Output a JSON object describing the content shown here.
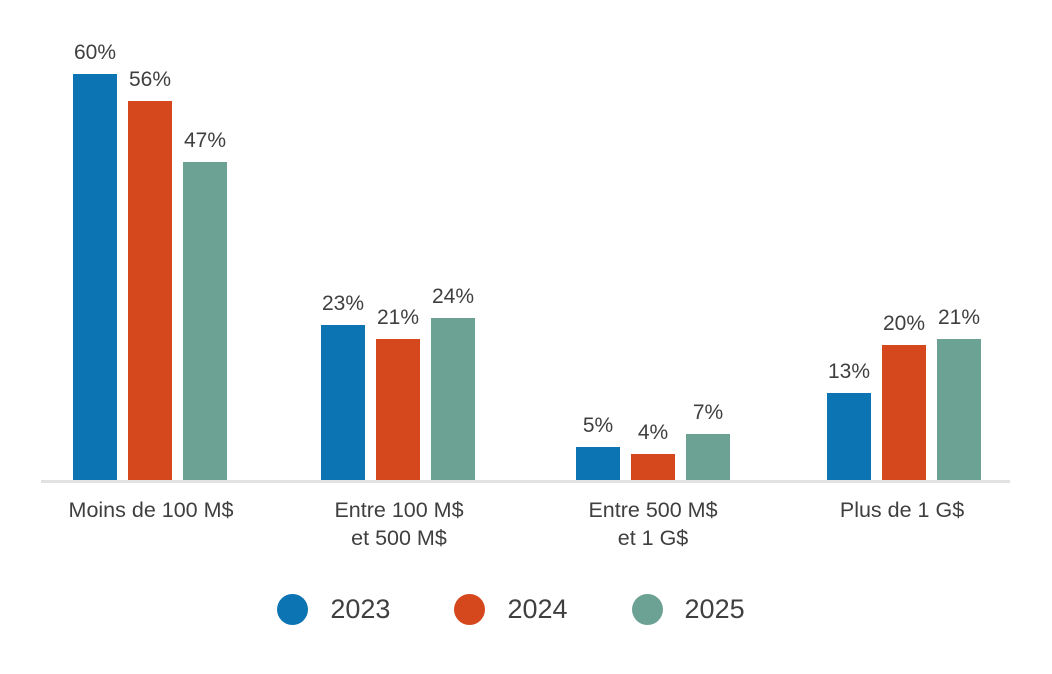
{
  "chart_data": {
    "type": "bar",
    "title": "",
    "xlabel": "",
    "ylabel": "",
    "unit": "%",
    "categories": [
      "Moins de 100 M$",
      "Entre 100 M$ et 500 M$",
      "Entre 500 M$ et 1 G$",
      "Plus de 1 G$"
    ],
    "category_lines": [
      [
        "Moins de 100 M$"
      ],
      [
        "Entre 100 M$",
        "et 500 M$"
      ],
      [
        "Entre 500 M$",
        "et 1 G$"
      ],
      [
        "Plus de 1 G$"
      ]
    ],
    "series": [
      {
        "name": "2023",
        "color": "#0D74B3",
        "values": [
          60,
          23,
          5,
          13
        ],
        "labels": [
          "60%",
          "23%",
          "5%",
          "13%"
        ]
      },
      {
        "name": "2024",
        "color": "#D5471C",
        "values": [
          56,
          21,
          4,
          20
        ],
        "labels": [
          "56%",
          "21%",
          "4%",
          "20%"
        ]
      },
      {
        "name": "2025",
        "color": "#6CA293",
        "values": [
          47,
          24,
          7,
          21
        ],
        "labels": [
          "47%",
          "24%",
          "7%",
          "21%"
        ]
      }
    ],
    "legend": [
      "2023",
      "2024",
      "2025"
    ],
    "legend_position": "bottom",
    "value_labels_shown": true,
    "grid": false,
    "ylim": [
      0,
      65
    ],
    "colors": {
      "axis_line": "#E2E2E2",
      "text": "#3F3F3F",
      "background": "#FFFFFF"
    }
  }
}
